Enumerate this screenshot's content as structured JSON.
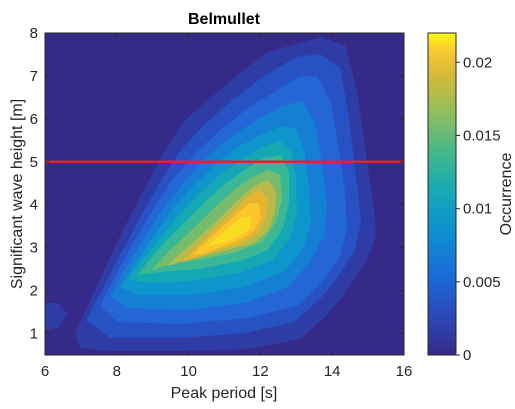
{
  "chart_data": {
    "type": "heatmap",
    "title": "Belmullet",
    "xlabel": "Peak period [s]",
    "ylabel": "Significant wave height [m]",
    "xlim": [
      6,
      16
    ],
    "ylim": [
      0.5,
      8
    ],
    "xticks": [
      6,
      8,
      10,
      12,
      14,
      16
    ],
    "yticks": [
      1,
      2,
      3,
      4,
      5,
      6,
      7,
      8
    ],
    "threshold_line": {
      "y": 5,
      "color": "#e8202a"
    },
    "colorbar": {
      "label": "Occurrence",
      "range": [
        0,
        0.022
      ],
      "ticks": [
        "0",
        "0.005",
        "0.01",
        "0.015",
        "0.02"
      ],
      "tick_values": [
        0,
        0.005,
        0.01,
        0.015,
        0.02
      ],
      "colormap": "parula"
    },
    "density_peak": {
      "x": 11.0,
      "y": 3.0,
      "value": 0.021
    },
    "grid": false
  }
}
